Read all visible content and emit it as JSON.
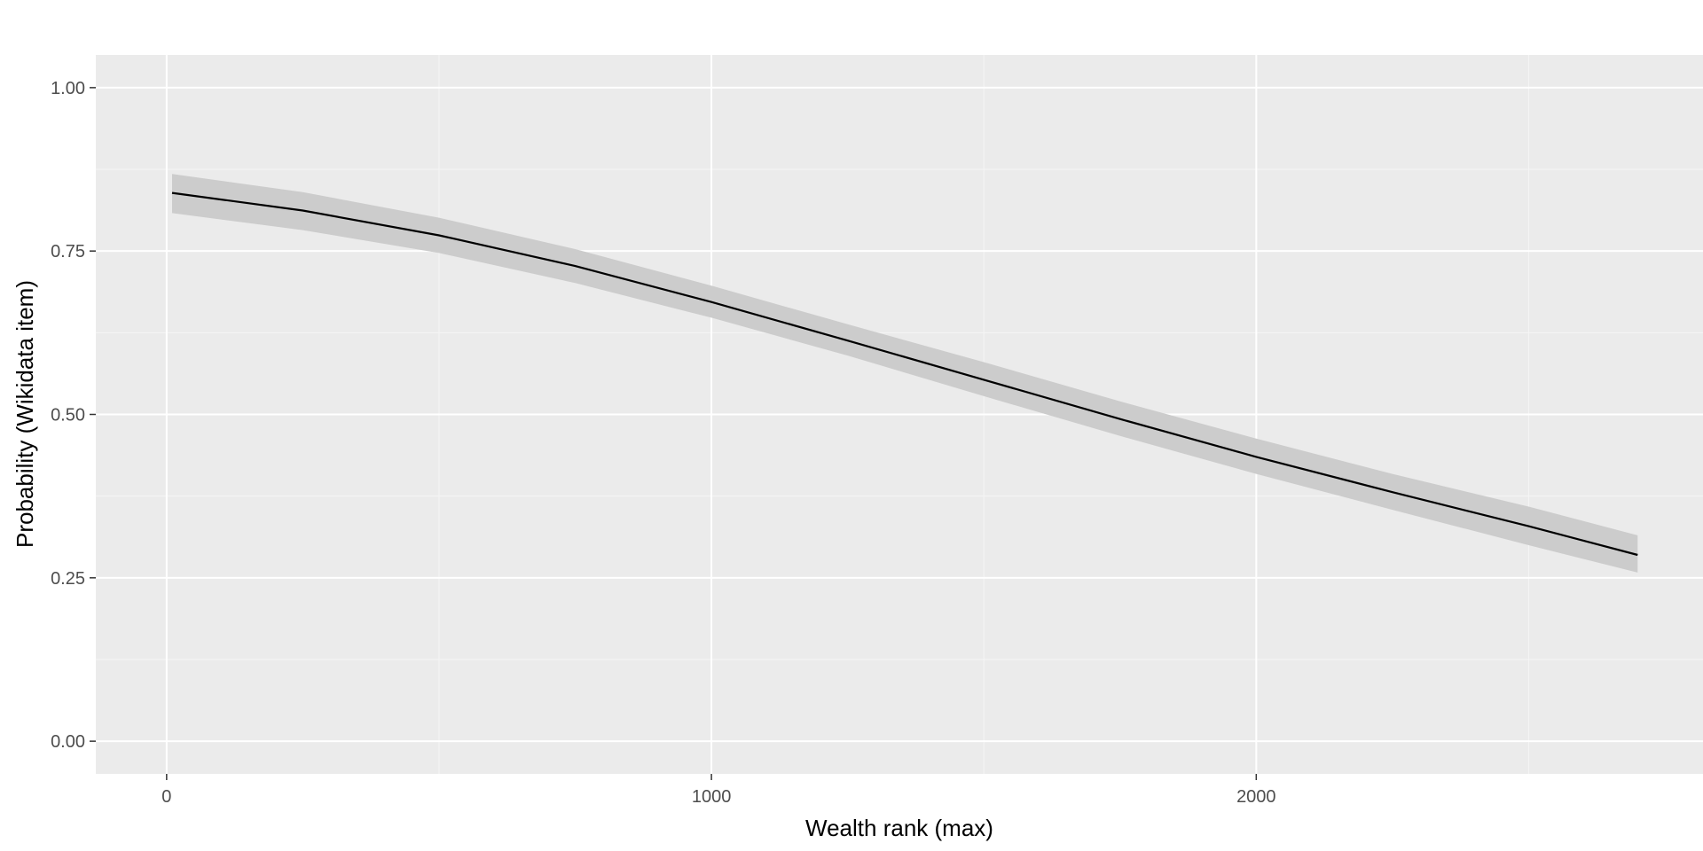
{
  "chart_data": {
    "type": "line",
    "title": "",
    "xlabel": "Wealth rank (max)",
    "ylabel": "Probability (Wikidata item)",
    "xlim": [
      -130,
      2820
    ],
    "ylim": [
      -0.05,
      1.05
    ],
    "x_ticks": [
      0,
      1000,
      2000
    ],
    "x_tick_labels": [
      "0",
      "1000",
      "2000"
    ],
    "x_minor_ticks": [
      500,
      1500,
      2500
    ],
    "y_ticks": [
      0,
      0.25,
      0.5,
      0.75,
      1.0
    ],
    "y_tick_labels": [
      "0.00",
      "0.25",
      "0.50",
      "0.75",
      "1.00"
    ],
    "y_minor_ticks": [
      0.125,
      0.375,
      0.625,
      0.875
    ],
    "grid": true,
    "series": [
      {
        "x": [
          10,
          250,
          500,
          750,
          1000,
          1250,
          1500,
          1750,
          2000,
          2250,
          2500,
          2700
        ],
        "values": [
          0.839,
          0.812,
          0.774,
          0.727,
          0.672,
          0.613,
          0.553,
          0.493,
          0.435,
          0.381,
          0.329,
          0.285
        ],
        "ci_upper": [
          0.868,
          0.84,
          0.801,
          0.753,
          0.697,
          0.638,
          0.58,
          0.52,
          0.463,
          0.409,
          0.359,
          0.315
        ],
        "ci_lower": [
          0.808,
          0.782,
          0.747,
          0.701,
          0.648,
          0.59,
          0.528,
          0.467,
          0.409,
          0.354,
          0.3,
          0.258
        ]
      }
    ],
    "colors": {
      "panel_background": "#ebebeb",
      "grid_major": "#ffffff",
      "grid_minor": "#f5f5f5",
      "ribbon": "#cccccc",
      "line": "#000000",
      "tick_text": "#4d4d4d",
      "tick_mark": "#333333"
    }
  }
}
